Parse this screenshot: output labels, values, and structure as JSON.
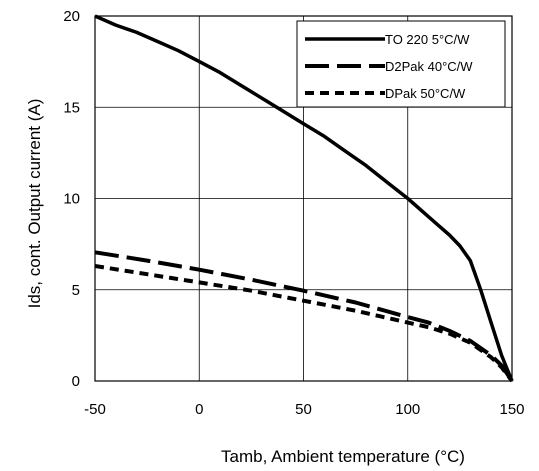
{
  "chart_data": {
    "type": "line",
    "xlabel": "Tamb, Ambient temperature (°C)",
    "ylabel": "Ids, cont. Output current (A)",
    "xlim": [
      -50,
      150
    ],
    "ylim": [
      0,
      20
    ],
    "xticks": [
      -50,
      0,
      50,
      100,
      150
    ],
    "yticks": [
      0,
      5,
      10,
      15,
      20
    ],
    "grid": true,
    "legend_position": "top-right",
    "series": [
      {
        "name": "TO 220 5°C/W",
        "style": "solid",
        "x": [
          -50,
          -40,
          -30,
          -20,
          -10,
          0,
          10,
          20,
          30,
          40,
          50,
          60,
          70,
          80,
          90,
          100,
          110,
          115,
          120,
          125,
          130,
          135,
          140,
          145,
          150
        ],
        "y": [
          20.0,
          19.5,
          19.1,
          18.6,
          18.1,
          17.5,
          16.9,
          16.2,
          15.5,
          14.8,
          14.1,
          13.4,
          12.6,
          11.8,
          10.9,
          10.0,
          9.0,
          8.5,
          8.0,
          7.4,
          6.6,
          5.0,
          3.2,
          1.4,
          0.0
        ]
      },
      {
        "name": "D2Pak 40°C/W",
        "style": "longdash",
        "x": [
          -50,
          -25,
          0,
          25,
          50,
          75,
          100,
          110,
          120,
          130,
          140,
          145,
          150
        ],
        "y": [
          7.05,
          6.6,
          6.1,
          5.55,
          4.95,
          4.3,
          3.5,
          3.2,
          2.75,
          2.2,
          1.4,
          0.85,
          0.0
        ]
      },
      {
        "name": "DPak 50°C/W",
        "style": "shortdash",
        "x": [
          -50,
          -25,
          0,
          25,
          50,
          75,
          100,
          110,
          120,
          130,
          140,
          145,
          150
        ],
        "y": [
          6.3,
          5.85,
          5.4,
          4.95,
          4.4,
          3.85,
          3.2,
          2.95,
          2.6,
          2.1,
          1.3,
          0.75,
          0.0
        ]
      }
    ]
  }
}
